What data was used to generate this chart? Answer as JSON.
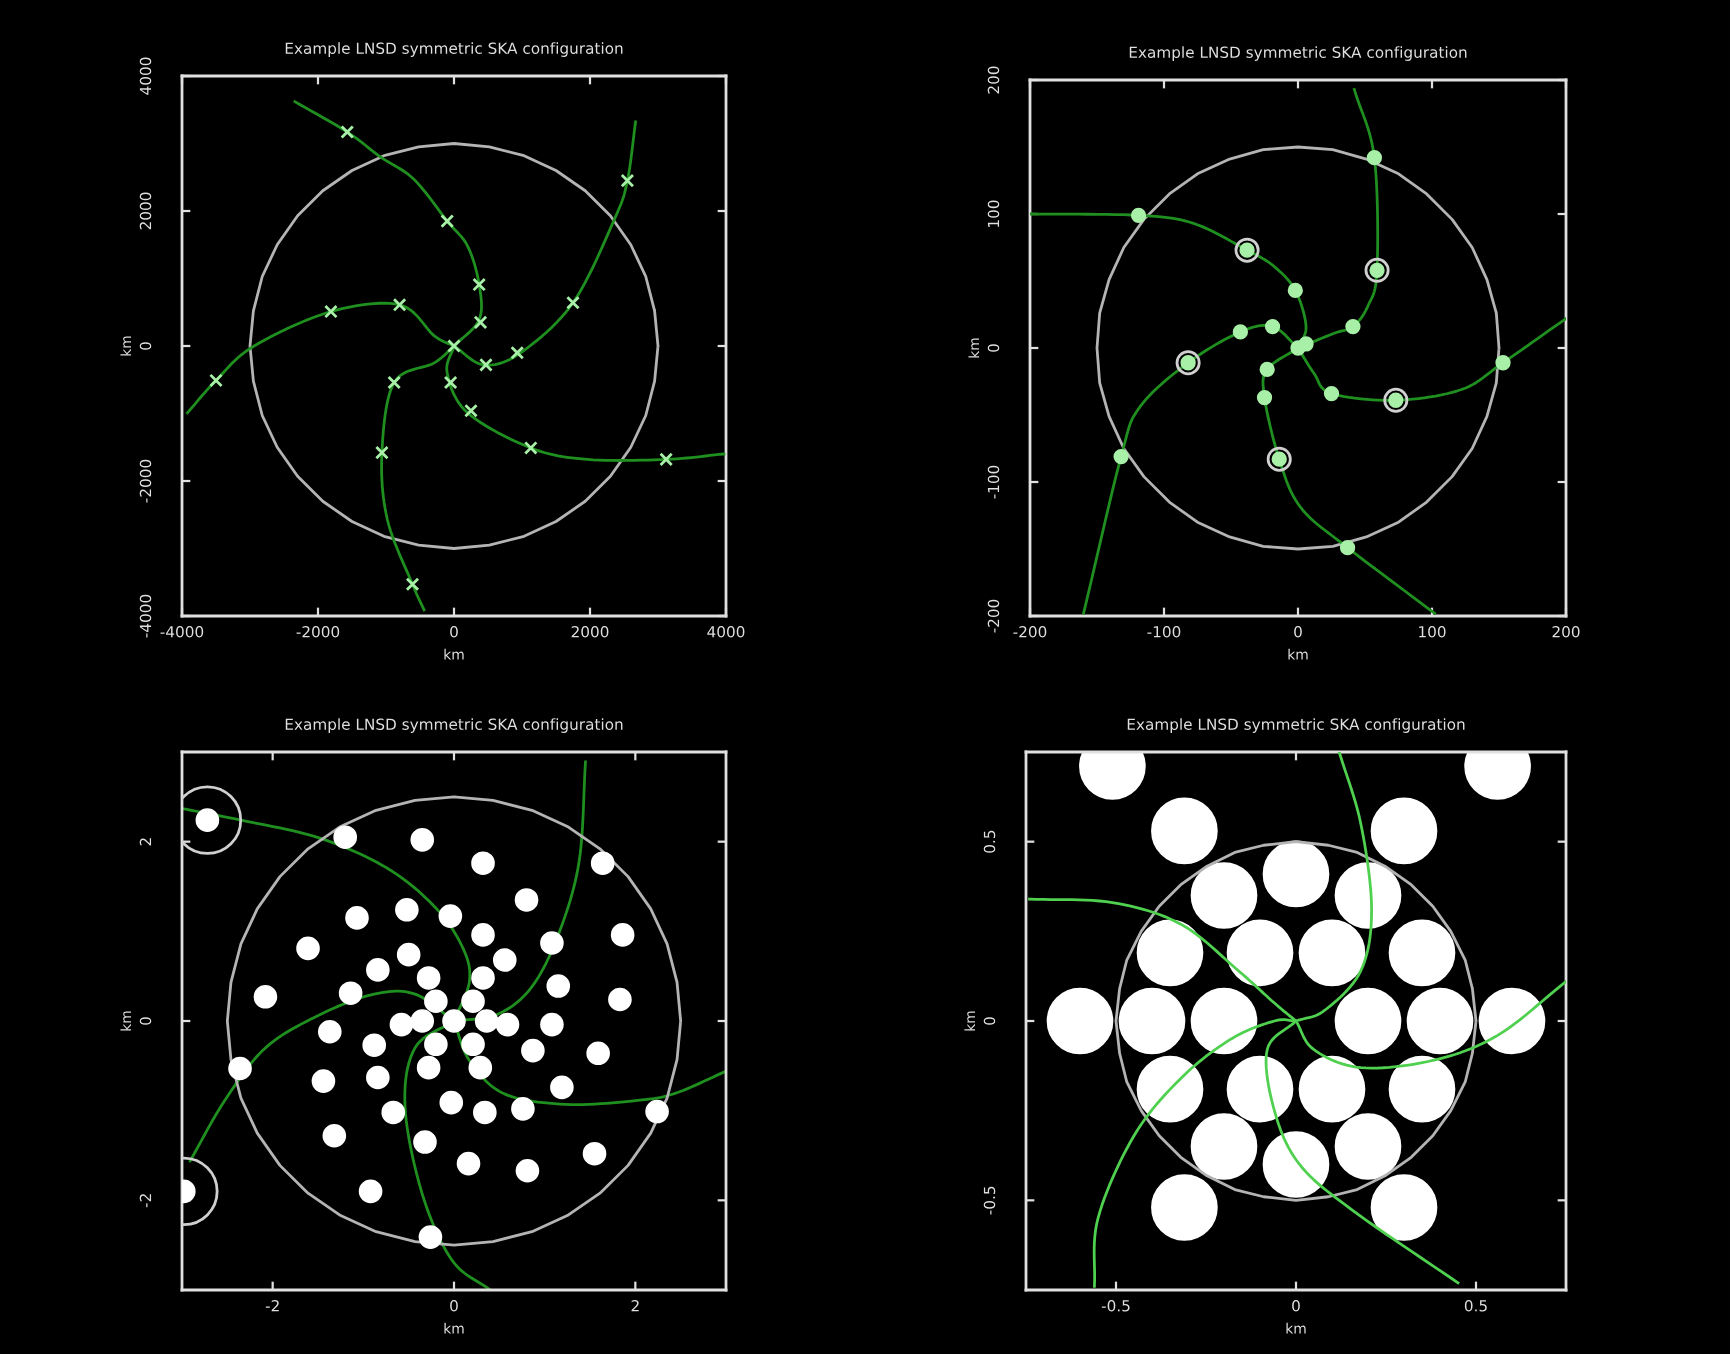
{
  "chart_data": [
    {
      "type": "scatter",
      "title": "Example LNSD symmetric SKA configuration",
      "xlabel": "km",
      "ylabel": "km",
      "xlim": [
        -4000,
        4000
      ],
      "ylim": [
        -4000,
        4000
      ],
      "xticks": [
        -4000,
        -2000,
        0,
        2000,
        4000
      ],
      "yticks": [
        -4000,
        -2000,
        0,
        2000,
        4000
      ],
      "series": [
        {
          "type": "line",
          "color": "#b4b4b4",
          "line_style": "solid",
          "x": [
            3000,
            2950,
            2820,
            2600,
            2300,
            1930,
            1500,
            1030,
            520,
            0,
            -520,
            -1030,
            -1500,
            -1930,
            -2300,
            -2600,
            -2820,
            -2950,
            -3000,
            -2950,
            -2820,
            -2600,
            -2300,
            -1930,
            -1500,
            -1030,
            -520,
            0,
            520,
            1030,
            1500,
            1930,
            2300,
            2600,
            2820,
            2950,
            3000
          ],
          "values": [
            0,
            520,
            1030,
            1500,
            1930,
            2300,
            2600,
            2820,
            2950,
            3000,
            2950,
            2820,
            2600,
            2300,
            1930,
            1500,
            1030,
            520,
            0,
            -520,
            -1030,
            -1500,
            -1930,
            -2300,
            -2600,
            -2820,
            -2950,
            -3000,
            -2950,
            -2820,
            -2600,
            -2300,
            -1930,
            -1500,
            -1030,
            -520,
            0
          ]
        },
        {
          "type": "line",
          "color": "#1f8f1f",
          "line_style": "solid",
          "x": [
            0,
            370,
            370,
            200,
            -100,
            -590,
            -1080,
            -1570,
            -2340,
            null,
            0,
            440,
            980,
            1750,
            2360,
            2550,
            2670,
            null,
            0,
            -100,
            200,
            1130,
            1960,
            3120,
            3970,
            null,
            0,
            -290,
            -880,
            -1060,
            -980,
            -610,
            -440,
            null,
            0,
            -290,
            -800,
            -1810,
            -2940,
            -3500,
            -3920
          ],
          "values": [
            0,
            390,
            910,
            1480,
            1850,
            2470,
            2800,
            3170,
            3620,
            null,
            0,
            -280,
            -100,
            640,
            1880,
            2450,
            3320,
            null,
            0,
            -400,
            -990,
            -1510,
            -1680,
            -1680,
            -1600,
            null,
            0,
            -250,
            -540,
            -1580,
            -2570,
            -3530,
            -3910,
            null,
            0,
            150,
            610,
            510,
            0,
            -510,
            -990
          ]
        },
        {
          "type": "scatter",
          "color": "#a8f0a8",
          "marker": "cross",
          "x": [
            -1570,
            2550,
            -100,
            370,
            390,
            1750,
            930,
            470,
            -800,
            -1810,
            -3500,
            -880,
            -1060,
            -610,
            -50,
            250,
            1130,
            3120,
            0
          ],
          "values": [
            3170,
            2450,
            1850,
            910,
            350,
            640,
            -100,
            -280,
            610,
            510,
            -510,
            -540,
            -1580,
            -3530,
            -540,
            -960,
            -1510,
            -1680,
            0
          ]
        }
      ]
    },
    {
      "type": "scatter",
      "title": "Example LNSD symmetric SKA configuration",
      "xlabel": "km",
      "ylabel": "km",
      "xlim": [
        -200,
        200
      ],
      "ylim": [
        -200,
        200
      ],
      "xticks": [
        -200,
        -100,
        0,
        100,
        200
      ],
      "yticks": [
        -200,
        -100,
        0,
        100,
        200
      ],
      "series": [
        {
          "type": "line",
          "color": "#b4b4b4",
          "line_style": "solid",
          "x": [
            150,
            148,
            141,
            130,
            115,
            96,
            75,
            51,
            26,
            0,
            -26,
            -51,
            -75,
            -96,
            -115,
            -130,
            -141,
            -148,
            -150,
            -148,
            -141,
            -130,
            -115,
            -96,
            -75,
            -51,
            -26,
            0,
            26,
            51,
            75,
            96,
            115,
            130,
            141,
            148,
            150
          ],
          "values": [
            0,
            26,
            51,
            75,
            96,
            115,
            130,
            141,
            148,
            150,
            148,
            141,
            130,
            115,
            96,
            75,
            51,
            26,
            0,
            -26,
            -51,
            -75,
            -96,
            -115,
            -130,
            -141,
            -148,
            -150,
            -148,
            -141,
            -130,
            -115,
            -96,
            -75,
            -51,
            -26,
            0
          ]
        },
        {
          "type": "line",
          "color": "#1f8f1f",
          "line_style": "solid",
          "x": [
            0,
            6,
            -2,
            -18,
            -38,
            -78,
            -119,
            -200,
            null,
            0,
            27,
            41,
            52,
            59,
            57,
            42,
            null,
            0,
            12,
            25,
            73,
            122,
            153,
            200,
            null,
            0,
            -23,
            -25,
            -14,
            2,
            37,
            102,
            null,
            0,
            -19,
            -43,
            -82,
            -118,
            -132,
            -160
          ],
          "values": [
            0,
            16,
            43,
            61,
            73,
            93,
            99,
            100,
            null,
            0,
            11,
            16,
            31,
            58,
            142,
            193,
            null,
            0,
            -19,
            -34,
            -39,
            -31,
            -11,
            22,
            null,
            0,
            -16,
            -37,
            -83,
            -119,
            -149,
            -198,
            null,
            0,
            16,
            12,
            -11,
            -44,
            -81,
            -198
          ]
        },
        {
          "type": "scatter",
          "color": "#a8f0a8",
          "marker": "circle",
          "x": [
            -38,
            59,
            -82,
            73,
            -14,
            -119,
            57,
            153,
            -132,
            37,
            -2,
            41,
            -43,
            -19,
            25,
            -25,
            6,
            -23,
            0
          ],
          "values": [
            73,
            58,
            -11,
            -39,
            -83,
            99,
            142,
            -11,
            -81,
            -149,
            43,
            16,
            12,
            16,
            -34,
            -37,
            3,
            -16,
            0
          ]
        },
        {
          "type": "scatter",
          "color": "#d0d0d0",
          "marker": "circle",
          "x": [
            -38,
            59,
            -82,
            73,
            -14
          ],
          "values": [
            73,
            58,
            -11,
            -39,
            -83
          ]
        }
      ]
    },
    {
      "type": "scatter",
      "title": "Example LNSD symmetric SKA configuration",
      "xlabel": "km",
      "ylabel": "km",
      "xlim": [
        -3,
        3
      ],
      "ylim": [
        -3,
        3
      ],
      "xticks": [
        -2,
        0,
        2
      ],
      "yticks": [
        -2,
        0,
        2
      ],
      "series": [
        {
          "type": "line",
          "color": "#1f8f1f",
          "line_style": "solid",
          "x": [
            0,
            0.17,
            0.1,
            -0.2,
            -0.73,
            -1.48,
            -2.35,
            -3,
            null,
            0,
            0.47,
            0.85,
            1.15,
            1.38,
            1.45,
            null,
            0,
            0.17,
            0.55,
            1.23,
            1.98,
            2.43,
            3,
            null,
            0,
            -0.43,
            -0.54,
            -0.35,
            -0.02,
            0.4,
            null,
            0,
            -0.43,
            -0.88,
            -1.48,
            -2.08,
            -2.53,
            -2.91
          ],
          "values": [
            0,
            0.44,
            0.81,
            1.26,
            1.7,
            2.04,
            2.24,
            2.37,
            null,
            0,
            0.07,
            0.37,
            0.96,
            1.78,
            2.89,
            null,
            0,
            -0.44,
            -0.81,
            -0.93,
            -0.89,
            -0.81,
            -0.56,
            null,
            0,
            -0.3,
            -0.96,
            -1.93,
            -2.67,
            -3,
            null,
            0,
            0.3,
            0.3,
            0.07,
            -0.3,
            -0.89,
            -1.56
          ]
        },
        {
          "type": "line",
          "color": "#b4b4b4",
          "line_style": "solid",
          "x": [
            2.5,
            2.46,
            2.35,
            2.17,
            1.92,
            1.61,
            1.25,
            0.86,
            0.43,
            0,
            -0.43,
            -0.86,
            -1.25,
            -1.61,
            -1.92,
            -2.17,
            -2.35,
            -2.46,
            -2.5,
            -2.46,
            -2.35,
            -2.17,
            -1.92,
            -1.61,
            -1.25,
            -0.86,
            -0.43,
            0,
            0.43,
            0.86,
            1.25,
            1.61,
            1.92,
            2.17,
            2.35,
            2.46,
            2.5
          ],
          "values": [
            0,
            0.43,
            0.86,
            1.25,
            1.61,
            1.92,
            2.17,
            2.35,
            2.46,
            2.5,
            2.46,
            2.35,
            2.17,
            1.92,
            1.61,
            1.25,
            0.86,
            0.43,
            0,
            -0.43,
            -0.86,
            -1.25,
            -1.61,
            -1.92,
            -2.17,
            -2.35,
            -2.46,
            -2.5,
            -2.46,
            -2.35,
            -2.17,
            -1.92,
            -1.61,
            -1.25,
            -0.86,
            -0.43,
            0
          ]
        },
        {
          "type": "scatter",
          "color": "#ffffff",
          "marker": "circle",
          "x": [
            -2.72,
            -1.2,
            -0.35,
            0.32,
            1.64,
            0.8,
            -1.07,
            -0.52,
            -0.04,
            -1.61,
            0.32,
            1.08,
            1.86,
            -0.84,
            -0.5,
            0.56,
            1.15,
            -2.08,
            -1.14,
            1.83,
            -1.37,
            -0.88,
            1.08,
            0.87,
            1.59,
            -2.36,
            -1.44,
            -0.84,
            1.19,
            -0.67,
            -0.03,
            0.34,
            0.76,
            2.24,
            -1.32,
            -0.32,
            0.16,
            0.81,
            1.55,
            -0.92,
            -0.26,
            -2.98,
            -0.28,
            0.32,
            -0.58,
            0.59,
            -0.28,
            0.29,
            0,
            -0.2,
            0.21,
            -0.2,
            0.21,
            -0.35,
            0.36
          ],
          "values": [
            2.24,
            2.05,
            2.02,
            1.76,
            1.76,
            1.35,
            1.15,
            1.24,
            1.17,
            0.81,
            0.96,
            0.87,
            0.96,
            0.57,
            0.74,
            0.68,
            0.39,
            0.27,
            0.31,
            0.24,
            -0.12,
            -0.27,
            -0.04,
            -0.33,
            -0.36,
            -0.53,
            -0.67,
            -0.63,
            -0.74,
            -1.02,
            -0.91,
            -1.02,
            -0.98,
            -1.01,
            -1.28,
            -1.35,
            -1.59,
            -1.67,
            -1.48,
            -1.9,
            -2.41,
            -1.9,
            0.48,
            0.48,
            -0.04,
            -0.04,
            -0.52,
            -0.52,
            0,
            0.22,
            0.22,
            -0.26,
            -0.26,
            0,
            0
          ]
        },
        {
          "type": "scatter",
          "color": "#d0d0d0",
          "marker": "circle",
          "x": [
            -2.72,
            -2.98
          ],
          "values": [
            2.24,
            -1.9
          ]
        }
      ]
    },
    {
      "type": "scatter",
      "title": "Example LNSD symmetric SKA configuration",
      "xlabel": "km",
      "ylabel": "km",
      "xlim": [
        -0.75,
        0.75
      ],
      "ylim": [
        -0.75,
        0.75
      ],
      "xticks": [
        -0.5,
        0,
        0.5
      ],
      "yticks": [
        -0.5,
        0,
        0.5
      ],
      "series": [
        {
          "type": "scatter",
          "color": "#ffffff",
          "marker": "circle",
          "x": [
            -0.51,
            0.56,
            -0.31,
            0.3,
            0,
            -0.2,
            0.2,
            -0.35,
            -0.1,
            0.1,
            0.35,
            -0.6,
            -0.4,
            -0.2,
            0.2,
            0.4,
            0.6,
            -0.35,
            -0.1,
            0.1,
            0.35,
            -0.2,
            0.2,
            0,
            -0.31,
            0.3
          ],
          "values": [
            0.71,
            0.71,
            0.53,
            0.53,
            0.41,
            0.35,
            0.35,
            0.19,
            0.19,
            0.19,
            0.19,
            0,
            0,
            0,
            0,
            0,
            0,
            -0.19,
            -0.19,
            -0.19,
            -0.19,
            -0.35,
            -0.35,
            -0.4,
            -0.52,
            -0.52
          ]
        },
        {
          "type": "line",
          "color": "#b4b4b4",
          "line_style": "solid",
          "x": [
            0.5,
            0.49,
            0.47,
            0.43,
            0.38,
            0.32,
            0.25,
            0.17,
            0.09,
            0,
            -0.09,
            -0.17,
            -0.25,
            -0.32,
            -0.38,
            -0.43,
            -0.47,
            -0.49,
            -0.5,
            -0.49,
            -0.47,
            -0.43,
            -0.38,
            -0.32,
            -0.25,
            -0.17,
            -0.09,
            0,
            0.09,
            0.17,
            0.25,
            0.32,
            0.38,
            0.43,
            0.47,
            0.49,
            0.5
          ],
          "values": [
            0,
            0.09,
            0.17,
            0.25,
            0.32,
            0.38,
            0.43,
            0.47,
            0.49,
            0.5,
            0.49,
            0.47,
            0.43,
            0.38,
            0.32,
            0.25,
            0.17,
            0.09,
            0,
            -0.09,
            -0.17,
            -0.25,
            -0.32,
            -0.38,
            -0.43,
            -0.47,
            -0.49,
            -0.5,
            -0.49,
            -0.47,
            -0.43,
            -0.38,
            -0.32,
            -0.25,
            -0.17,
            -0.09,
            0
          ]
        },
        {
          "type": "line",
          "color": "#4fd04f",
          "line_style": "solid",
          "x": [
            0,
            -0.06,
            -0.16,
            -0.32,
            -0.51,
            -0.74,
            null,
            0,
            0.08,
            0.18,
            0.21,
            0.18,
            0.12,
            null,
            0,
            0.05,
            0.18,
            0.38,
            0.56,
            0.75,
            null,
            0,
            -0.08,
            -0.06,
            0.01,
            0.16,
            0.45,
            null,
            0,
            -0.06,
            -0.18,
            -0.32,
            -0.45,
            -0.55,
            -0.56
          ],
          "values": [
            0,
            0.05,
            0.14,
            0.27,
            0.33,
            0.34,
            null,
            0,
            0.03,
            0.14,
            0.31,
            0.55,
            0.75,
            null,
            0,
            -0.08,
            -0.13,
            -0.11,
            -0.04,
            0.11,
            null,
            0,
            -0.08,
            -0.25,
            -0.4,
            -0.53,
            -0.73,
            null,
            0,
            0,
            -0.05,
            -0.16,
            -0.32,
            -0.55,
            -0.74
          ]
        }
      ]
    }
  ]
}
